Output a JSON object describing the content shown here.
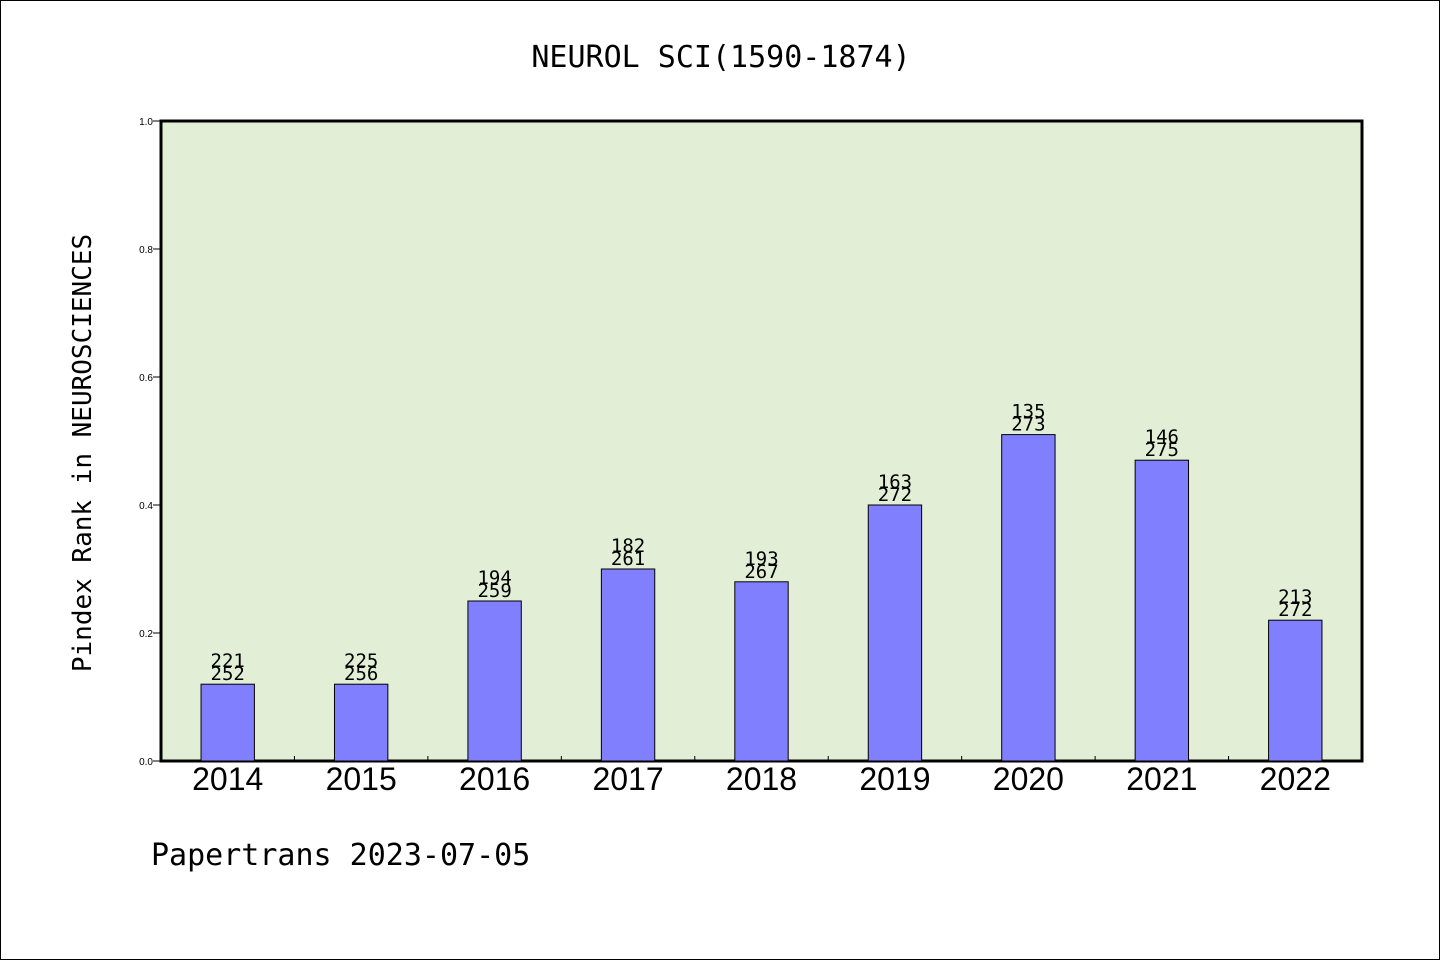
{
  "chart_data": {
    "type": "bar",
    "title": "NEUROL SCI(1590-1874)",
    "ylabel": "Pindex Rank in NEUROSCIENCES",
    "xlabel": "",
    "footer": "Papertrans 2023-07-05",
    "categories": [
      "2014",
      "2015",
      "2016",
      "2017",
      "2018",
      "2019",
      "2020",
      "2021",
      "2022"
    ],
    "values": [
      0.12,
      0.12,
      0.25,
      0.3,
      0.28,
      0.4,
      0.51,
      0.47,
      0.22
    ],
    "rank": [
      "221",
      "225",
      "194",
      "182",
      "193",
      "163",
      "135",
      "146",
      "213"
    ],
    "total": [
      "252",
      "256",
      "259",
      "261",
      "267",
      "272",
      "273",
      "275",
      "272"
    ],
    "ylim": [
      0,
      1.0
    ],
    "yticks": [
      "0.0",
      "0.2",
      "0.4",
      "0.6",
      "0.8",
      "1.0"
    ],
    "grid": false,
    "colors": {
      "plot_background": "#e2efd6",
      "bar_fill": "#8080ff",
      "bar_stroke": "#000000",
      "text": "#000000"
    }
  }
}
